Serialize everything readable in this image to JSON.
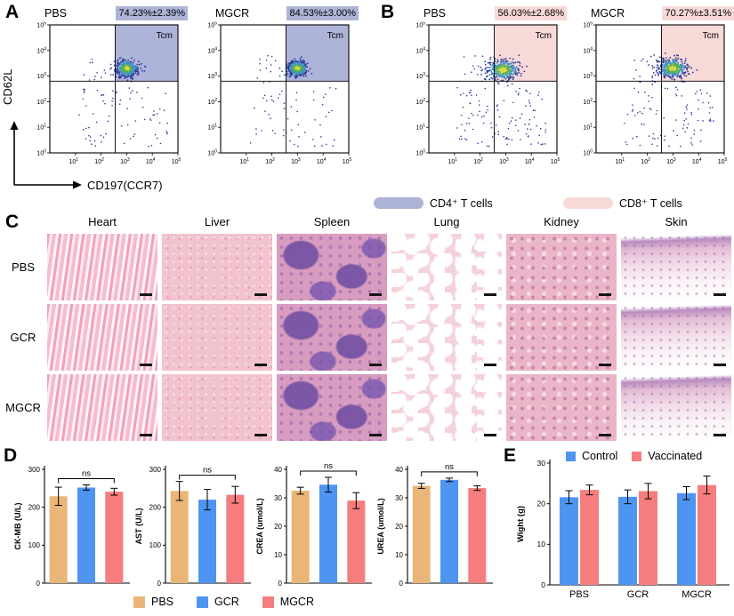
{
  "figure": {
    "panel_a": {
      "label": "A",
      "y_axis_label": "CD62L",
      "x_axis_label": "CD197(CCR7)",
      "highlight_color": "#aeb4d8"
    },
    "panel_b": {
      "label": "B",
      "highlight_color": "#f7d9d7"
    },
    "cell_legend": [
      {
        "label": "CD4⁺ T cells",
        "color": "#aeb4d8"
      },
      {
        "label": "CD8⁺ T cells",
        "color": "#f7d9d7"
      }
    ],
    "panel_c": {
      "label": "C",
      "columns": [
        "Heart",
        "Liver",
        "Spleen",
        "Lung",
        "Kidney",
        "Skin"
      ],
      "rows": [
        "PBS",
        "GCR",
        "MGCR"
      ]
    },
    "panel_d": {
      "label": "D",
      "legend": [
        {
          "label": "PBS",
          "color": "#e9b678"
        },
        {
          "label": "GCR",
          "color": "#4e95f2"
        },
        {
          "label": "MGCR",
          "color": "#f57d7d"
        }
      ]
    },
    "panel_e": {
      "label": "E",
      "legend": [
        {
          "label": "Control",
          "color": "#4e95f2"
        },
        {
          "label": "Vaccinated",
          "color": "#f57d7d"
        }
      ]
    }
  },
  "chart_data": [
    {
      "type": "scatter",
      "name": "flow-a-pbs",
      "title": "PBS",
      "xlabel": "CD197(CCR7)",
      "ylabel": "CD62L",
      "scale": "log10",
      "x_tick_exponents": [
        1,
        2,
        3,
        4,
        5
      ],
      "y_tick_exponents": [
        0,
        1,
        2,
        3,
        4,
        5
      ],
      "gate_label": "Tcm",
      "gate_stat": "74.23%±2.39%",
      "gate_fill": "#aeb4d8",
      "gate_x": 2.55,
      "gate_y": 2.8,
      "cluster_center_log": [
        3.0,
        3.3
      ],
      "cluster_sigma_log": [
        0.22,
        0.17
      ],
      "cluster_points": 380,
      "scatter_points": 75
    },
    {
      "type": "scatter",
      "name": "flow-a-mgcr",
      "title": "MGCR",
      "xlabel": "CD197(CCR7)",
      "ylabel": "CD62L",
      "scale": "log10",
      "x_tick_exponents": [
        1,
        2,
        3,
        4,
        5
      ],
      "y_tick_exponents": [
        0,
        1,
        2,
        3,
        4,
        5
      ],
      "gate_label": "Tcm",
      "gate_stat": "84.53%±3.00%",
      "gate_fill": "#aeb4d8",
      "gate_x": 2.55,
      "gate_y": 2.8,
      "cluster_center_log": [
        3.0,
        3.3
      ],
      "cluster_sigma_log": [
        0.2,
        0.16
      ],
      "cluster_points": 400,
      "scatter_points": 55
    },
    {
      "type": "scatter",
      "name": "flow-b-pbs",
      "title": "PBS",
      "xlabel": "CD197(CCR7)",
      "ylabel": "CD62L",
      "scale": "log10",
      "x_tick_exponents": [
        1,
        2,
        3,
        4,
        5
      ],
      "y_tick_exponents": [
        0,
        1,
        2,
        3,
        4,
        5
      ],
      "gate_label": "Tcm",
      "gate_stat": "56.03%±2.68%",
      "gate_fill": "#f7d9d7",
      "gate_x": 2.55,
      "gate_y": 2.8,
      "cluster_center_log": [
        2.9,
        3.25
      ],
      "cluster_sigma_log": [
        0.32,
        0.2
      ],
      "cluster_points": 380,
      "scatter_points": 110
    },
    {
      "type": "scatter",
      "name": "flow-b-mgcr",
      "title": "MGCR",
      "xlabel": "CD197(CCR7)",
      "ylabel": "CD62L",
      "scale": "log10",
      "x_tick_exponents": [
        1,
        2,
        3,
        4,
        5
      ],
      "y_tick_exponents": [
        0,
        1,
        2,
        3,
        4,
        5
      ],
      "gate_label": "Tcm",
      "gate_stat": "70.27%±3.51%",
      "gate_fill": "#f7d9d7",
      "gate_x": 2.55,
      "gate_y": 2.8,
      "cluster_center_log": [
        3.0,
        3.3
      ],
      "cluster_sigma_log": [
        0.3,
        0.2
      ],
      "cluster_points": 420,
      "scatter_points": 90
    },
    {
      "type": "bar",
      "name": "ck-mb",
      "ylabel": "CK-MB (U/L)",
      "categories": [
        "PBS",
        "GCR",
        "MGCR"
      ],
      "values": [
        229,
        252,
        241
      ],
      "errors": [
        24,
        7,
        9
      ],
      "ylim": [
        0,
        300
      ],
      "yticks": [
        0,
        100,
        200,
        300
      ],
      "sig_label": "ns",
      "colors": [
        "#e9b678",
        "#4e95f2",
        "#f57d7d"
      ]
    },
    {
      "type": "bar",
      "name": "ast",
      "ylabel": "AST (U/L)",
      "categories": [
        "PBS",
        "GCR",
        "MGCR"
      ],
      "values": [
        243,
        220,
        233
      ],
      "errors": [
        25,
        27,
        22
      ],
      "ylim": [
        0,
        300
      ],
      "yticks": [
        0,
        100,
        200,
        300
      ],
      "sig_label": "ns",
      "colors": [
        "#e9b678",
        "#4e95f2",
        "#f57d7d"
      ]
    },
    {
      "type": "bar",
      "name": "crea",
      "ylabel": "CREA (umol/L)",
      "categories": [
        "PBS",
        "GCR",
        "MGCR"
      ],
      "values": [
        32.5,
        34.6,
        29.0
      ],
      "errors": [
        1.2,
        2.6,
        2.8
      ],
      "ylim": [
        0,
        40
      ],
      "yticks": [
        0,
        10,
        20,
        30,
        40
      ],
      "sig_label": "ns",
      "colors": [
        "#e9b678",
        "#4e95f2",
        "#f57d7d"
      ]
    },
    {
      "type": "bar",
      "name": "urea",
      "ylabel": "UREA (umol/L)",
      "categories": [
        "PBS",
        "GCR",
        "MGCR"
      ],
      "values": [
        34.2,
        36.3,
        33.4
      ],
      "errors": [
        0.9,
        0.6,
        0.8
      ],
      "ylim": [
        0,
        40
      ],
      "yticks": [
        0,
        10,
        20,
        30,
        40
      ],
      "sig_label": "ns",
      "colors": [
        "#e9b678",
        "#4e95f2",
        "#f57d7d"
      ]
    },
    {
      "type": "grouped-bar",
      "name": "weight",
      "ylabel": "Wight (g)",
      "categories": [
        "PBS",
        "GCR",
        "MGCR"
      ],
      "series": [
        {
          "name": "Control",
          "color": "#4e95f2",
          "values": [
            21.6,
            21.7,
            22.6
          ],
          "errors": [
            1.6,
            1.7,
            1.6
          ]
        },
        {
          "name": "Vaccinated",
          "color": "#f57d7d",
          "values": [
            23.4,
            23.1,
            24.6
          ],
          "errors": [
            1.2,
            1.9,
            2.2
          ]
        }
      ],
      "ylim": [
        0,
        30
      ],
      "yticks": [
        0,
        10,
        20,
        30
      ]
    }
  ]
}
